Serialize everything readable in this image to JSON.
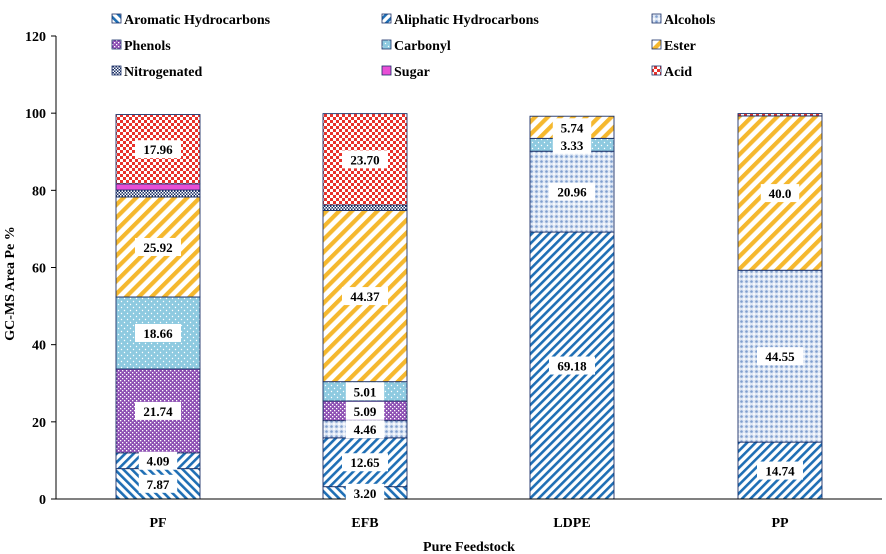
{
  "chart_data": {
    "type": "bar",
    "stacked": true,
    "xlabel": "Pure Feedstock",
    "ylabel": "GC-MS  Area Pe %",
    "ylim": [
      0,
      120
    ],
    "yticks": [
      "0",
      "20",
      "40",
      "60",
      "80",
      "100",
      "120"
    ],
    "categories": [
      "PF",
      "EFB",
      "LDPE",
      "PP"
    ],
    "grid": false,
    "legend_position": "top",
    "series": [
      {
        "name": "Aromatic Hydrocarbons",
        "color": "#1f6fb5",
        "pattern": "stripe-back",
        "values": [
          7.87,
          3.2,
          0,
          0
        ],
        "labels": [
          "7.87",
          "3.20",
          "",
          ""
        ]
      },
      {
        "name": "Aliphatic Hydrocarbons",
        "color": "#1f6fb5",
        "pattern": "stripe-fwd",
        "values": [
          4.09,
          12.65,
          69.18,
          14.74
        ],
        "labels": [
          "4.09",
          "12.65",
          "69.18",
          "14.74"
        ]
      },
      {
        "name": "Alcohols",
        "color": "#7f9fcf",
        "pattern": "dots",
        "values": [
          0,
          4.46,
          20.96,
          44.55
        ],
        "labels": [
          "",
          "4.46",
          "20.96",
          "44.55"
        ]
      },
      {
        "name": "Phenols",
        "color": "#8d4fb3",
        "pattern": "crosshatch",
        "values": [
          21.74,
          5.09,
          0,
          0
        ],
        "labels": [
          "21.74",
          "5.09",
          "",
          ""
        ]
      },
      {
        "name": "Carbonyl",
        "color": "#8ecae0",
        "pattern": "fine-dots",
        "values": [
          18.66,
          5.01,
          3.33,
          0
        ],
        "labels": [
          "18.66",
          "5.01",
          "3.33",
          ""
        ]
      },
      {
        "name": "Ester",
        "color": "#f5b82e",
        "pattern": "stripe-fwd-wide",
        "values": [
          25.92,
          44.37,
          5.74,
          40.0
        ],
        "labels": [
          "25.92",
          "44.37",
          "5.74",
          "40.0"
        ]
      },
      {
        "name": "Nitrogenated",
        "color": "#1a2f66",
        "pattern": "checker-small",
        "values": [
          1.8,
          1.4,
          0,
          0
        ],
        "labels": [
          "",
          "",
          "",
          ""
        ]
      },
      {
        "name": "Sugar",
        "color": "#e84fd6",
        "pattern": "solid",
        "values": [
          1.6,
          0,
          0,
          0
        ],
        "labels": [
          "",
          "",
          "",
          ""
        ]
      },
      {
        "name": "Acid",
        "color": "#e8322b",
        "pattern": "checker",
        "values": [
          17.96,
          23.7,
          0,
          0.6
        ],
        "labels": [
          "17.96",
          "23.70",
          "",
          ""
        ]
      }
    ]
  }
}
